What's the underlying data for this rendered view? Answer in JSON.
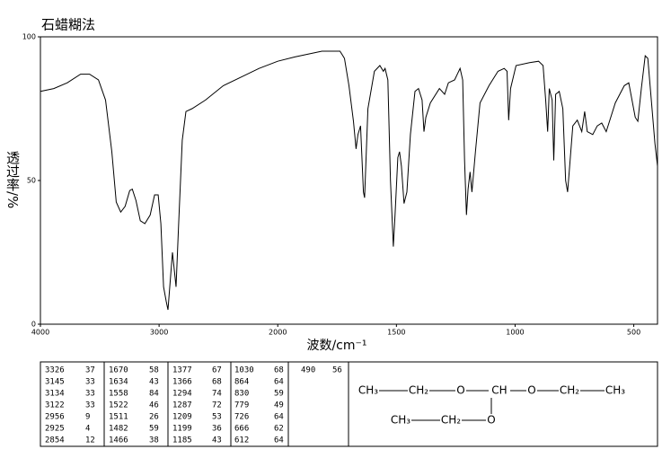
{
  "chart_data": {
    "type": "line",
    "title": "石蜡糊法",
    "x_label": "波数/cm⁻¹",
    "y_label": "透过率/%",
    "xlim": [
      4000,
      400
    ],
    "x_scale_change": {
      "at": 2000,
      "ratio": 2
    },
    "xticks": [
      4000,
      3000,
      2000,
      1500,
      1000,
      500
    ],
    "ylim": [
      0,
      100
    ],
    "yticks": [
      0,
      50,
      100
    ],
    "grid": false,
    "x": [
      4000,
      3887,
      3774,
      3662,
      3586,
      3511,
      3451,
      3398,
      3361,
      3323,
      3286,
      3248,
      3226,
      3195,
      3158,
      3120,
      3075,
      3038,
      3008,
      2985,
      2962,
      2940,
      2925,
      2910,
      2887,
      2872,
      2857,
      2835,
      2805,
      2774,
      2722,
      2609,
      2459,
      2308,
      2158,
      2000,
      1928,
      1814,
      1738,
      1719,
      1700,
      1681,
      1670,
      1662,
      1651,
      1639,
      1634,
      1620,
      1593,
      1570,
      1555,
      1548,
      1536,
      1525,
      1513,
      1506,
      1494,
      1487,
      1479,
      1468,
      1456,
      1441,
      1422,
      1407,
      1392,
      1384,
      1376,
      1357,
      1319,
      1297,
      1281,
      1255,
      1232,
      1221,
      1213,
      1205,
      1198,
      1190,
      1182,
      1167,
      1148,
      1110,
      1072,
      1046,
      1034,
      1027,
      1019,
      996,
      939,
      901,
      882,
      871,
      863,
      856,
      844,
      837,
      829,
      814,
      799,
      787,
      779,
      772,
      757,
      738,
      719,
      707,
      696,
      673,
      654,
      635,
      616,
      578,
      540,
      521,
      494,
      483,
      468,
      452,
      441,
      426,
      411,
      400
    ],
    "series": [
      {
        "name": "spectrum",
        "color": "#000000",
        "values": [
          81,
          82,
          84,
          87,
          87,
          85,
          78,
          60,
          42.5,
          39,
          41,
          46.5,
          47,
          43,
          36,
          35,
          38,
          45,
          45,
          35,
          13,
          8,
          5,
          13,
          25,
          19,
          13,
          35,
          64,
          74,
          75,
          78,
          83,
          86,
          89,
          91.5,
          93,
          95,
          95,
          92.5,
          83,
          70.6,
          61,
          66,
          69,
          46,
          44,
          75,
          88,
          90,
          88,
          89,
          85,
          50,
          27,
          38,
          58,
          60,
          55,
          42,
          46,
          66,
          81,
          82,
          78,
          67,
          72,
          77,
          82,
          80,
          84,
          85,
          89,
          85,
          57,
          38,
          47,
          53,
          46,
          60,
          77,
          83,
          88,
          89,
          88,
          71,
          82,
          90,
          91,
          91.5,
          90,
          78,
          67,
          82,
          78,
          57,
          80,
          81,
          75,
          50,
          46,
          53,
          69,
          71,
          67,
          74,
          67,
          66,
          69,
          70,
          67,
          77,
          83,
          84,
          72,
          70.6,
          82,
          93.4,
          92.5,
          78,
          63,
          55
        ]
      }
    ]
  },
  "peak_table": [
    [
      [
        3326,
        37
      ],
      [
        3145,
        33
      ],
      [
        3134,
        33
      ],
      [
        3122,
        33
      ],
      [
        2956,
        9
      ],
      [
        2925,
        4
      ],
      [
        2854,
        12
      ]
    ],
    [
      [
        1670,
        58
      ],
      [
        1634,
        43
      ],
      [
        1558,
        84
      ],
      [
        1522,
        46
      ],
      [
        1511,
        26
      ],
      [
        1482,
        59
      ],
      [
        1466,
        38
      ]
    ],
    [
      [
        1377,
        67
      ],
      [
        1366,
        68
      ],
      [
        1294,
        74
      ],
      [
        1287,
        72
      ],
      [
        1209,
        53
      ],
      [
        1199,
        36
      ],
      [
        1185,
        43
      ]
    ],
    [
      [
        1030,
        68
      ],
      [
        864,
        64
      ],
      [
        830,
        59
      ],
      [
        779,
        49
      ],
      [
        726,
        64
      ],
      [
        666,
        62
      ],
      [
        612,
        64
      ]
    ],
    [
      [
        490,
        56
      ]
    ]
  ],
  "structure": {
    "top": [
      "CH₃",
      "CH₂",
      "O",
      "CH",
      "O",
      "CH₂",
      "CH₃"
    ],
    "bottom": [
      "CH₃",
      "CH₂",
      "O"
    ]
  }
}
